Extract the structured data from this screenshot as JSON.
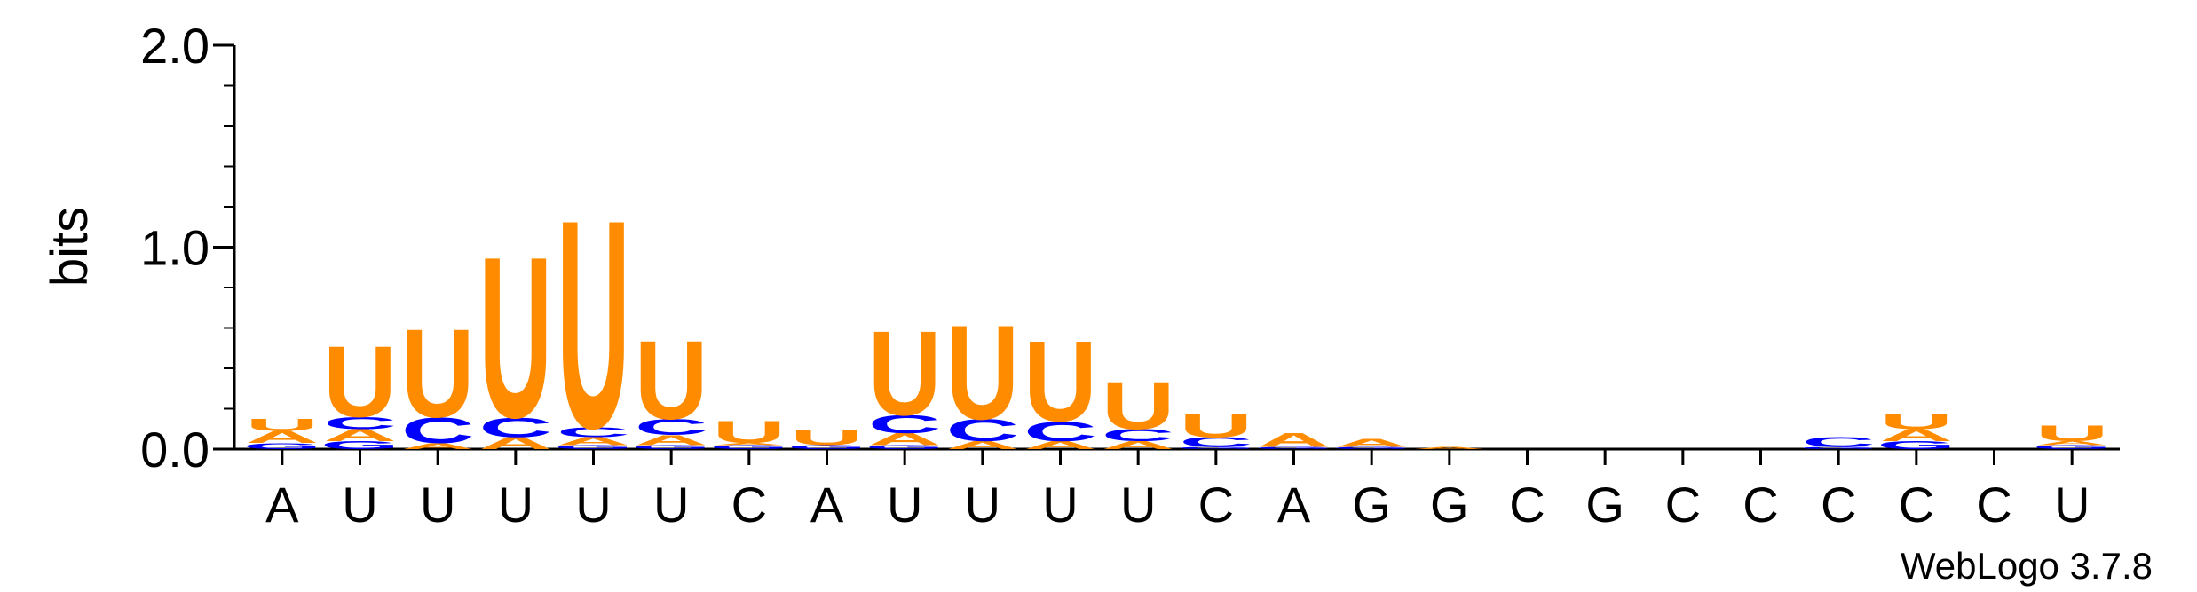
{
  "chart_data": {
    "type": "sequence-logo",
    "ylabel": "bits",
    "ylim": [
      0,
      2
    ],
    "yticks": [
      {
        "value": 0,
        "label": "0.0"
      },
      {
        "value": 1,
        "label": "1.0"
      },
      {
        "value": 2,
        "label": "2.0"
      }
    ],
    "positions": [
      "A",
      "U",
      "U",
      "U",
      "U",
      "U",
      "C",
      "A",
      "U",
      "U",
      "U",
      "U",
      "C",
      "A",
      "G",
      "G",
      "C",
      "G",
      "C",
      "C",
      "C",
      "C",
      "C",
      "U"
    ],
    "colors": {
      "U": "#ff8c00",
      "C": "#0000ff",
      "A": "#ff8c00",
      "G": "#0000ff"
    },
    "stacks": [
      [
        {
          "l": "G",
          "h": 0.03
        },
        {
          "l": "A",
          "h": 0.06
        },
        {
          "l": "U",
          "h": 0.06
        }
      ],
      [
        {
          "l": "G",
          "h": 0.04
        },
        {
          "l": "A",
          "h": 0.06
        },
        {
          "l": "C",
          "h": 0.06
        },
        {
          "l": "U",
          "h": 0.36
        }
      ],
      [
        {
          "l": "A",
          "h": 0.03
        },
        {
          "l": "C",
          "h": 0.13
        },
        {
          "l": "U",
          "h": 0.45
        }
      ],
      [
        {
          "l": "A",
          "h": 0.06
        },
        {
          "l": "C",
          "h": 0.1
        },
        {
          "l": "U",
          "h": 0.82
        }
      ],
      [
        {
          "l": "G",
          "h": 0.02
        },
        {
          "l": "A",
          "h": 0.04
        },
        {
          "l": "C",
          "h": 0.05
        },
        {
          "l": "U",
          "h": 1.06
        }
      ],
      [
        {
          "l": "G",
          "h": 0.02
        },
        {
          "l": "A",
          "h": 0.05
        },
        {
          "l": "C",
          "h": 0.08
        },
        {
          "l": "U",
          "h": 0.4
        }
      ],
      [
        {
          "l": "G",
          "h": 0.02
        },
        {
          "l": "A",
          "h": 0.01
        },
        {
          "l": "U",
          "h": 0.11
        }
      ],
      [
        {
          "l": "G",
          "h": 0.02
        },
        {
          "l": "U",
          "h": 0.08
        }
      ],
      [
        {
          "l": "G",
          "h": 0.02
        },
        {
          "l": "A",
          "h": 0.06
        },
        {
          "l": "C",
          "h": 0.09
        },
        {
          "l": "U",
          "h": 0.43
        }
      ],
      [
        {
          "l": "A",
          "h": 0.04
        },
        {
          "l": "C",
          "h": 0.11
        },
        {
          "l": "U",
          "h": 0.48
        }
      ],
      [
        {
          "l": "A",
          "h": 0.04
        },
        {
          "l": "C",
          "h": 0.1
        },
        {
          "l": "U",
          "h": 0.41
        }
      ],
      [
        {
          "l": "A",
          "h": 0.04
        },
        {
          "l": "C",
          "h": 0.06
        },
        {
          "l": "U",
          "h": 0.24
        }
      ],
      [
        {
          "l": "G",
          "h": 0.01
        },
        {
          "l": "C",
          "h": 0.05
        },
        {
          "l": "U",
          "h": 0.12
        }
      ],
      [
        {
          "l": "G",
          "h": 0.01
        },
        {
          "l": "A",
          "h": 0.07
        }
      ],
      [
        {
          "l": "G",
          "h": 0.01
        },
        {
          "l": "A",
          "h": 0.04
        }
      ],
      [
        {
          "l": "A",
          "h": 0.01
        }
      ],
      [],
      [],
      [],
      [],
      [
        {
          "l": "G",
          "h": 0.01
        },
        {
          "l": "C",
          "h": 0.05
        }
      ],
      [
        {
          "l": "G",
          "h": 0.04
        },
        {
          "l": "A",
          "h": 0.06
        },
        {
          "l": "U",
          "h": 0.08
        }
      ],
      [],
      [
        {
          "l": "G",
          "h": 0.02
        },
        {
          "l": "A",
          "h": 0.02
        },
        {
          "l": "U",
          "h": 0.08
        }
      ]
    ]
  },
  "watermark": "WebLogo 3.7.8"
}
